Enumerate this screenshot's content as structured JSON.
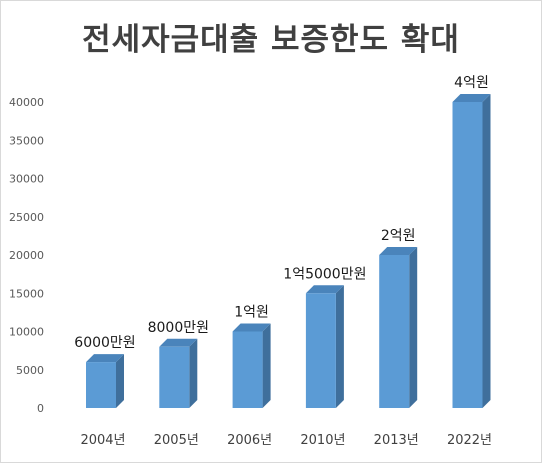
{
  "chart_data": {
    "type": "bar",
    "title": "전세자금대출 보증한도 확대",
    "xlabel": "",
    "ylabel": "",
    "ylim": [
      0,
      40000
    ],
    "yticks": [
      0,
      5000,
      10000,
      15000,
      20000,
      25000,
      30000,
      35000,
      40000
    ],
    "categories": [
      "2004년",
      "2005년",
      "2006년",
      "2010년",
      "2013년",
      "2022년"
    ],
    "values": [
      6000,
      8000,
      10000,
      15000,
      20000,
      40000
    ],
    "data_labels": [
      "6000만원",
      "8000만원",
      "1억원",
      "1억5000만원",
      "2억원",
      "4억원"
    ],
    "bar_style": "3d-column",
    "grid": false,
    "legend": "none",
    "colors": {
      "bar_front": "#5b9bd5",
      "bar_side": "#3f6f9c",
      "bar_top": "#4a84bb"
    }
  }
}
